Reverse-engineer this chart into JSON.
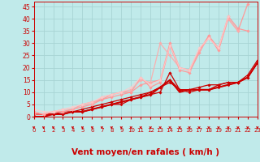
{
  "xlabel": "Vent moyen/en rafales ( km/h )",
  "xlim": [
    0,
    23
  ],
  "ylim": [
    0,
    47
  ],
  "xticks": [
    0,
    1,
    2,
    3,
    4,
    5,
    6,
    7,
    8,
    9,
    10,
    11,
    12,
    13,
    14,
    15,
    16,
    17,
    18,
    19,
    20,
    21,
    22,
    23
  ],
  "yticks": [
    0,
    5,
    10,
    15,
    20,
    25,
    30,
    35,
    40,
    45
  ],
  "background_color": "#c0eaea",
  "grid_color": "#a8d4d4",
  "xlabel_color": "#cc0000",
  "tick_color": "#cc0000",
  "lines": [
    {
      "x": [
        0,
        1,
        2,
        3,
        4,
        5,
        6,
        7,
        8,
        9,
        10,
        11,
        12,
        13,
        14,
        15,
        16,
        17,
        18,
        19,
        20,
        21,
        22,
        23
      ],
      "y": [
        1,
        1,
        1,
        1,
        2,
        2,
        3,
        4,
        5,
        6,
        7,
        8,
        9,
        10,
        18,
        11,
        11,
        11,
        11,
        13,
        14,
        14,
        17,
        23
      ],
      "color": "#cc0000",
      "linewidth": 0.9,
      "marker": "D",
      "markersize": 1.8,
      "alpha": 1.0
    },
    {
      "x": [
        0,
        1,
        2,
        3,
        4,
        5,
        6,
        7,
        8,
        9,
        10,
        11,
        12,
        13,
        14,
        15,
        16,
        17,
        18,
        19,
        20,
        21,
        22,
        23
      ],
      "y": [
        1,
        1,
        1,
        2,
        2,
        3,
        4,
        5,
        6,
        7,
        8,
        9,
        10,
        12,
        15,
        11,
        11,
        12,
        13,
        13,
        14,
        14,
        16,
        22
      ],
      "color": "#cc0000",
      "linewidth": 0.9,
      "marker": "D",
      "markersize": 1.8,
      "alpha": 1.0
    },
    {
      "x": [
        0,
        1,
        2,
        3,
        4,
        5,
        6,
        7,
        8,
        9,
        10,
        11,
        12,
        13,
        14,
        15,
        16,
        17,
        18,
        19,
        20,
        21,
        22,
        23
      ],
      "y": [
        1,
        1,
        1,
        1,
        2,
        2,
        3,
        4,
        5,
        5,
        7,
        8,
        10,
        12,
        14,
        11,
        10,
        11,
        11,
        12,
        13,
        14,
        16,
        22
      ],
      "color": "#cc0000",
      "linewidth": 0.9,
      "marker": "D",
      "markersize": 1.5,
      "alpha": 1.0
    },
    {
      "x": [
        0,
        1,
        2,
        3,
        4,
        5,
        6,
        7,
        8,
        9,
        10,
        11,
        12,
        13,
        14,
        15,
        16,
        17,
        18,
        19,
        20,
        21,
        22,
        23
      ],
      "y": [
        0,
        0,
        1,
        1,
        2,
        2,
        3,
        4,
        5,
        6,
        7,
        8,
        9,
        12,
        15,
        10,
        11,
        11,
        11,
        12,
        13,
        14,
        16,
        22
      ],
      "color": "#cc0000",
      "linewidth": 1.4,
      "marker": null,
      "markersize": 0,
      "alpha": 1.0
    },
    {
      "x": [
        0,
        1,
        2,
        3,
        4,
        5,
        6,
        7,
        8,
        9,
        10,
        11,
        12,
        13,
        14,
        15,
        16,
        17,
        18,
        19,
        20,
        21,
        22,
        23
      ],
      "y": [
        2,
        1,
        2,
        2,
        3,
        4,
        5,
        7,
        8,
        9,
        10,
        16,
        12,
        14,
        29,
        19,
        18,
        26,
        33,
        27,
        40,
        35,
        46,
        null
      ],
      "color": "#ff9999",
      "linewidth": 0.9,
      "marker": "D",
      "markersize": 1.8,
      "alpha": 1.0
    },
    {
      "x": [
        0,
        1,
        2,
        3,
        4,
        5,
        6,
        7,
        8,
        9,
        10,
        11,
        12,
        13,
        14,
        15,
        16,
        17,
        18,
        19,
        20,
        21,
        22,
        23
      ],
      "y": [
        1,
        1,
        2,
        2,
        3,
        5,
        6,
        7,
        9,
        10,
        10,
        13,
        14,
        15,
        30,
        20,
        19,
        27,
        33,
        28,
        41,
        36,
        35,
        null
      ],
      "color": "#ff9999",
      "linewidth": 0.9,
      "marker": "D",
      "markersize": 1.8,
      "alpha": 1.0
    },
    {
      "x": [
        0,
        1,
        2,
        3,
        4,
        5,
        6,
        7,
        8,
        9,
        10,
        11,
        12,
        13,
        14,
        15,
        16,
        17,
        18,
        19,
        20,
        21,
        22,
        23
      ],
      "y": [
        2,
        1,
        2,
        3,
        3,
        5,
        5,
        8,
        9,
        10,
        11,
        15,
        14,
        30,
        25,
        20,
        19,
        27,
        32,
        28,
        40,
        35,
        null,
        null
      ],
      "color": "#ffaaaa",
      "linewidth": 0.9,
      "marker": "D",
      "markersize": 1.8,
      "alpha": 0.9
    },
    {
      "x": [
        0,
        1,
        2,
        3,
        4,
        5,
        6,
        7,
        8,
        9,
        10,
        11,
        12,
        13,
        14,
        15,
        16,
        17,
        18,
        19,
        20,
        21,
        22,
        23
      ],
      "y": [
        3,
        2,
        2,
        3,
        4,
        5,
        6,
        8,
        9,
        10,
        12,
        16,
        13,
        15,
        29,
        20,
        19,
        28,
        32,
        28,
        41,
        null,
        null,
        null
      ],
      "color": "#ffcccc",
      "linewidth": 0.9,
      "marker": "D",
      "markersize": 1.8,
      "alpha": 0.8
    }
  ],
  "arrow_color": "#cc0000",
  "xlabel_fontsize": 7.5
}
